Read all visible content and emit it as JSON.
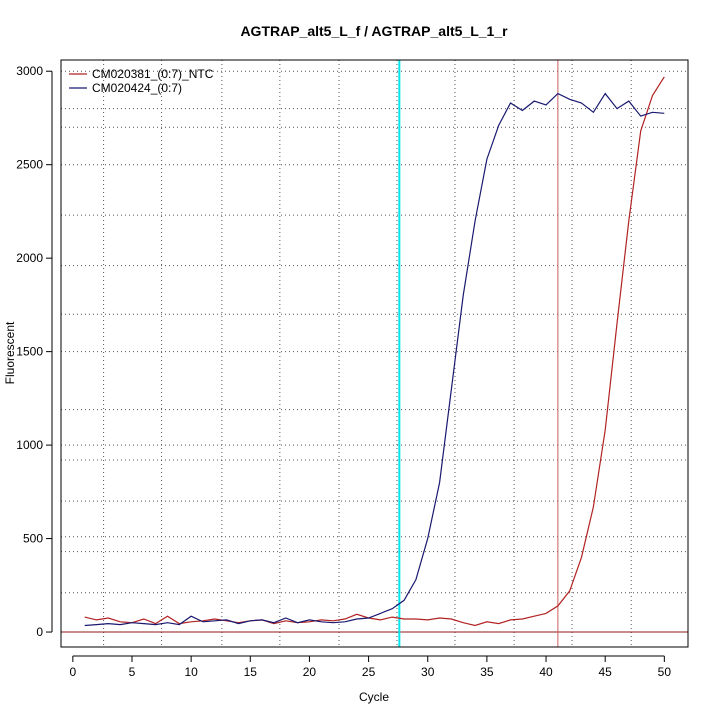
{
  "chart_data": {
    "type": "line",
    "title": "AGTRAP_alt5_L_f / AGTRAP_alt5_L_1_r",
    "xlabel": "Cycle",
    "ylabel": "Fluorescent",
    "xlim": [
      -1,
      52
    ],
    "ylim": [
      -80,
      3060
    ],
    "xticks": [
      0,
      5,
      10,
      15,
      20,
      25,
      30,
      35,
      40,
      45,
      50
    ],
    "yticks": [
      0,
      500,
      1000,
      1500,
      2000,
      2500,
      3000
    ],
    "grid": true,
    "legend_position": "top-left",
    "vertical_grid_lines": [
      2.6,
      7.5,
      12.6,
      17.5,
      22.5,
      27.4,
      32.3,
      37.3,
      42.2,
      47.2
    ],
    "horizontal_grid_lines": [
      0,
      210,
      430,
      510,
      700,
      920,
      1000,
      1190,
      1500,
      1700,
      1960,
      2230,
      2500,
      2700,
      2800,
      3000
    ],
    "threshold_y": 0,
    "threshold_color": "#8b1a1a",
    "cyan_vline_x": 27.6,
    "red_vline_x": 41.0,
    "series": [
      {
        "name": "CM020381_(0:7)_NTC",
        "color": "#b22222",
        "x": [
          1,
          2,
          3,
          4,
          5,
          6,
          7,
          8,
          9,
          10,
          11,
          12,
          13,
          14,
          15,
          16,
          17,
          18,
          19,
          20,
          21,
          22,
          23,
          24,
          25,
          26,
          27,
          28,
          29,
          30,
          31,
          32,
          33,
          34,
          35,
          36,
          37,
          38,
          39,
          40,
          41,
          42,
          43,
          44,
          45,
          46,
          47,
          48,
          49,
          50
        ],
        "y": [
          80,
          65,
          75,
          55,
          50,
          70,
          45,
          85,
          45,
          55,
          60,
          70,
          60,
          50,
          60,
          65,
          45,
          60,
          50,
          55,
          65,
          60,
          70,
          95,
          75,
          65,
          80,
          70,
          70,
          65,
          75,
          70,
          50,
          35,
          55,
          45,
          65,
          70,
          85,
          100,
          140,
          220,
          400,
          670,
          1080,
          1650,
          2200,
          2680,
          2870,
          2970
        ]
      },
      {
        "name": "CM020424_(0:7)",
        "color": "#191970",
        "x": [
          1,
          2,
          3,
          4,
          5,
          6,
          7,
          8,
          9,
          10,
          11,
          12,
          13,
          14,
          15,
          16,
          17,
          18,
          19,
          20,
          21,
          22,
          23,
          24,
          25,
          26,
          27,
          28,
          29,
          30,
          31,
          32,
          33,
          34,
          35,
          36,
          37,
          38,
          39,
          40,
          41,
          42,
          43,
          44,
          45,
          46,
          47,
          48,
          49,
          50
        ],
        "y": [
          35,
          40,
          45,
          40,
          50,
          45,
          40,
          50,
          40,
          85,
          55,
          60,
          65,
          45,
          60,
          65,
          50,
          75,
          50,
          65,
          55,
          50,
          55,
          70,
          75,
          100,
          125,
          170,
          280,
          500,
          800,
          1300,
          1800,
          2200,
          2530,
          2710,
          2830,
          2790,
          2840,
          2820,
          2880,
          2850,
          2830,
          2780,
          2880,
          2800,
          2840,
          2760,
          2780,
          2775
        ]
      }
    ]
  }
}
